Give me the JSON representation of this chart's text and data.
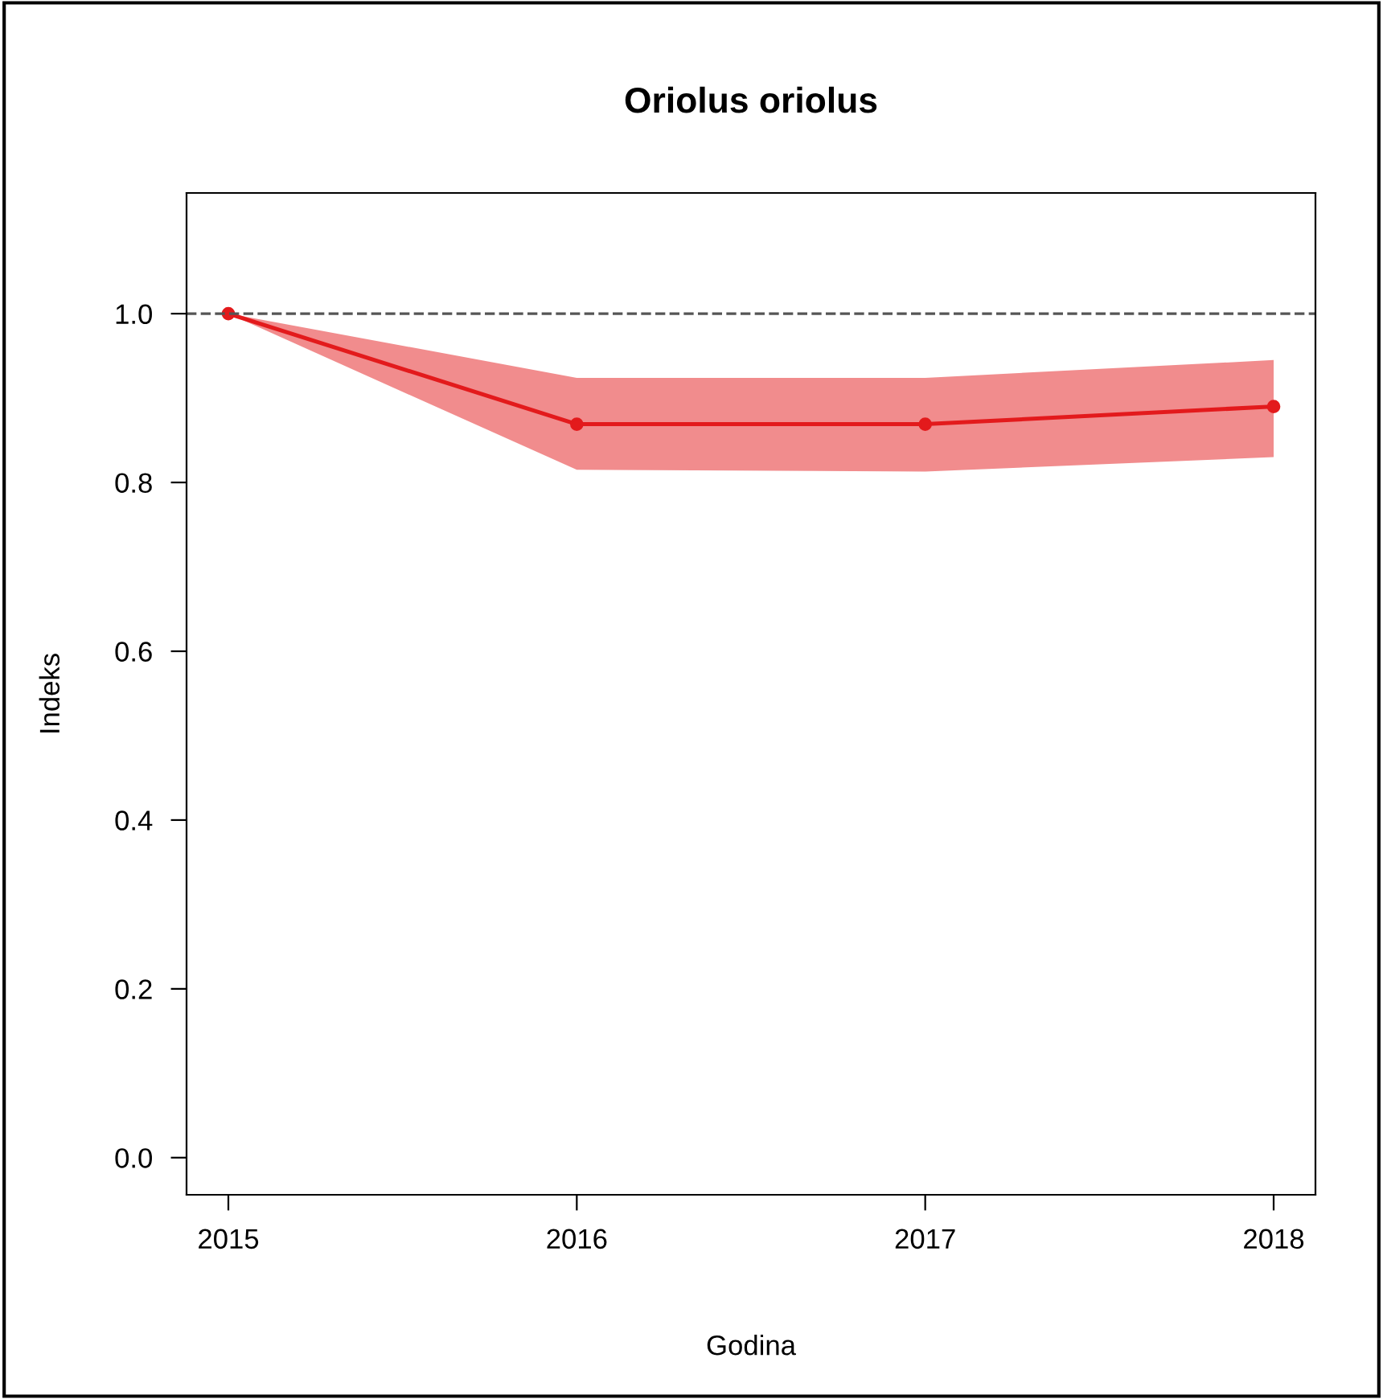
{
  "chart_data": {
    "type": "line",
    "title": "Oriolus oriolus",
    "xlabel": "Godina",
    "ylabel": "Indeks",
    "x": [
      2015,
      2016,
      2017,
      2018
    ],
    "series": [
      {
        "color": "#e31a1c",
        "values": [
          1.0,
          0.869,
          0.869,
          0.89
        ],
        "lower": [
          1.0,
          0.815,
          0.813,
          0.83
        ],
        "upper": [
          1.0,
          0.924,
          0.924,
          0.945
        ]
      }
    ],
    "xlim": [
      2014.88,
      2018.12
    ],
    "xticks": [
      2015,
      2016,
      2017,
      2018
    ],
    "ylim": [
      -0.044,
      1.143
    ],
    "yticks": [
      {
        "value": 0,
        "label": "0.0"
      },
      0.2,
      0.4,
      0.6,
      0.8,
      {
        "value": 1,
        "label": "1.0"
      }
    ],
    "ref_lines": [
      {
        "axis": "y",
        "value": 1,
        "color": "#555555",
        "line_style": "dashed"
      }
    ],
    "marker": "circle",
    "line_style": "solid",
    "grid": false,
    "legend": false
  }
}
